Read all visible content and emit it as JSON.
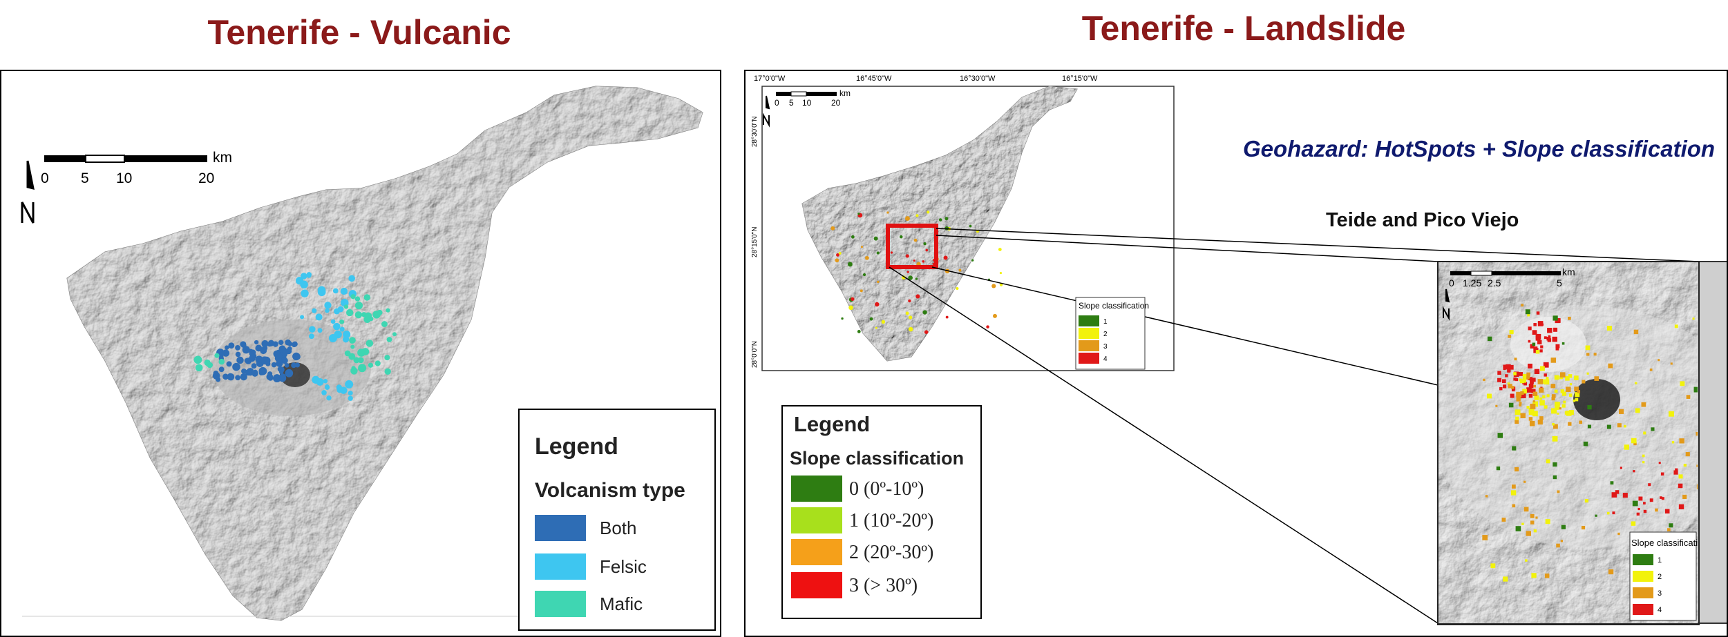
{
  "left": {
    "title": "Tenerife - Vulcanic",
    "scale": {
      "unit": "km",
      "ticks": [
        "0",
        "5",
        "10",
        "20"
      ]
    },
    "legend": {
      "title": "Legend",
      "subtitle": "Volcanism type",
      "items": [
        {
          "label": "Both",
          "color": "#2e6db5"
        },
        {
          "label": "Felsic",
          "color": "#3ec6f0"
        },
        {
          "label": "Mafic",
          "color": "#3fd6b2"
        }
      ]
    }
  },
  "right": {
    "title": "Tenerife - Landslide",
    "geohazard_label": "Geohazard: HotSpots + Slope classification",
    "inset_caption": "Teide and Pico Viejo",
    "small_map": {
      "coords_top": [
        "17°0'0\"W",
        "16°45'0\"W",
        "16°30'0\"W",
        "16°15'0\"W"
      ],
      "coords_left": [
        "28°30'0\"N",
        "28°15'0\"N",
        "28°0'0\"N"
      ],
      "scale": {
        "unit": "km",
        "ticks": [
          "0",
          "5",
          "10",
          "20"
        ]
      },
      "legend_title": "Slope classification",
      "legend_items": [
        "1",
        "2",
        "3",
        "4"
      ]
    },
    "main_legend": {
      "title": "Legend",
      "subtitle": "Slope classification",
      "items": [
        {
          "label": "0 (0º-10º)",
          "color": "#2e7d12"
        },
        {
          "label": "1 (10º-20º)",
          "color": "#a8e01c"
        },
        {
          "label": "2 (20º-30º)",
          "color": "#f5a01a"
        },
        {
          "label": "3 (> 30º)",
          "color": "#ee1111"
        }
      ]
    },
    "zoom_map": {
      "scale": {
        "unit": "km",
        "ticks": [
          "0",
          "1.25",
          "2.5",
          "5"
        ]
      },
      "legend_title": "Slope classification",
      "legend_items": [
        "1",
        "2",
        "3",
        "4"
      ]
    },
    "slope_colors": [
      "#2e7d12",
      "#f2f20c",
      "#e39a1a",
      "#e01818"
    ]
  }
}
